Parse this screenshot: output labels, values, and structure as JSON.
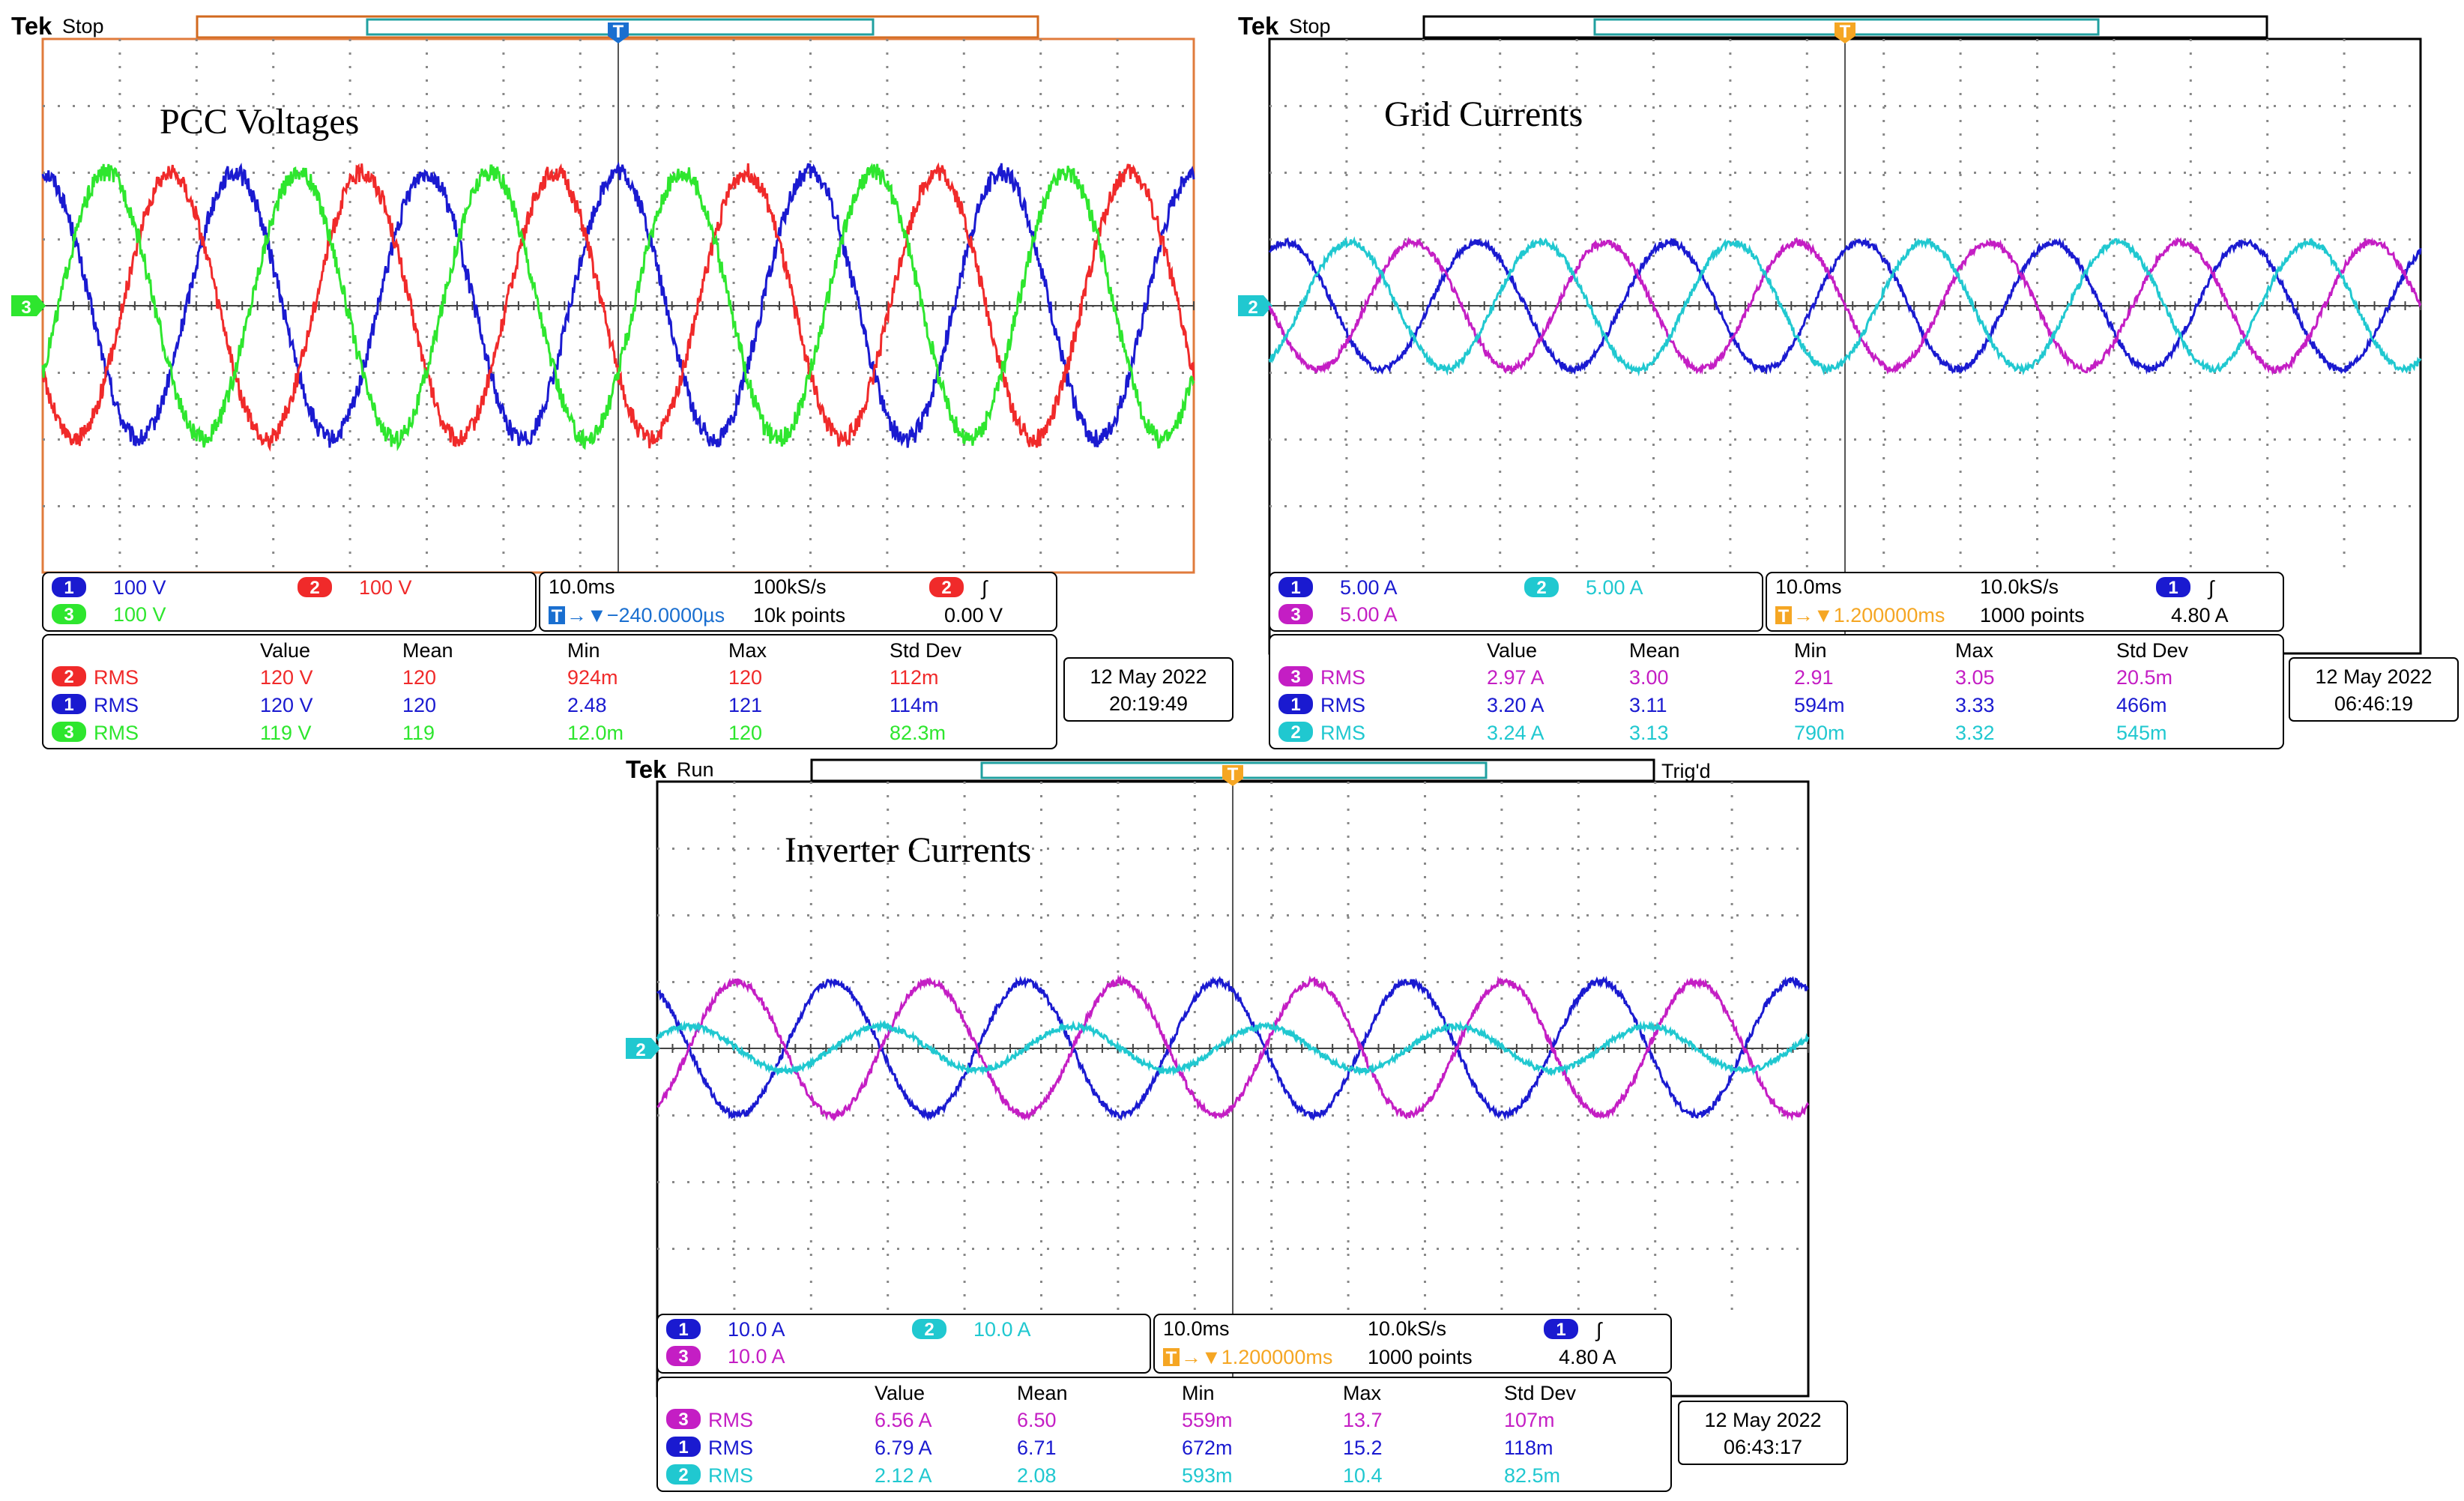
{
  "colors": {
    "ch1": "#1a1ad0",
    "ch2": "#f02a2a",
    "ch3": "#2ee62e",
    "magenta": "#c41ec4",
    "cyan": "#20c8d0",
    "trigger": "#f5a623"
  },
  "scopes": [
    {
      "brand": "Tek",
      "state": "Stop",
      "trig_status": "",
      "title": "PCC Voltages",
      "ground_marker": "3",
      "trace_colors": [
        "#1a1ad0",
        "#f02a2a",
        "#2ee62e"
      ],
      "channels": [
        {
          "num": "1",
          "scale": "100 V",
          "color": "#1a1ad0"
        },
        {
          "num": "2",
          "scale": "100 V",
          "color": "#f02a2a"
        },
        {
          "num": "3",
          "scale": "100 V",
          "color": "#2ee62e"
        }
      ],
      "timebase": "10.0ms",
      "sample_rate": "100kS/s",
      "delay": "−240.0000µs",
      "points": "10k points",
      "trig_channel": "2",
      "trig_level": "0.00 V",
      "meas_headers": [
        "Value",
        "Mean",
        "Min",
        "Max",
        "Std Dev"
      ],
      "meas": [
        {
          "ch": "2",
          "type": "RMS",
          "color": "#f02a2a",
          "value": "120 V",
          "mean": "120",
          "min": "924m",
          "max": "120",
          "std": "112m"
        },
        {
          "ch": "1",
          "type": "RMS",
          "color": "#1a1ad0",
          "value": "120 V",
          "mean": "120",
          "min": "2.48",
          "max": "121",
          "std": "114m"
        },
        {
          "ch": "3",
          "type": "RMS",
          "color": "#2ee62e",
          "value": "119 V",
          "mean": "119",
          "min": "12.0m",
          "max": "120",
          "std": "82.3m"
        }
      ],
      "date": "12 May 2022",
      "time": "20:19:49"
    },
    {
      "brand": "Tek",
      "state": "Stop",
      "trig_status": "",
      "title": "Grid Currents",
      "ground_marker": "2",
      "trace_colors": [
        "#1a1ad0",
        "#c41ec4",
        "#20c8d0"
      ],
      "channels": [
        {
          "num": "1",
          "scale": "5.00 A",
          "color": "#1a1ad0"
        },
        {
          "num": "2",
          "scale": "5.00 A",
          "color": "#20c8d0"
        },
        {
          "num": "3",
          "scale": "5.00 A",
          "color": "#c41ec4"
        }
      ],
      "timebase": "10.0ms",
      "sample_rate": "10.0kS/s",
      "delay": "1.200000ms",
      "points": "1000 points",
      "trig_channel": "1",
      "trig_level": "4.80 A",
      "meas_headers": [
        "Value",
        "Mean",
        "Min",
        "Max",
        "Std Dev"
      ],
      "meas": [
        {
          "ch": "3",
          "type": "RMS",
          "color": "#c41ec4",
          "value": "2.97 A",
          "mean": "3.00",
          "min": "2.91",
          "max": "3.05",
          "std": "20.5m"
        },
        {
          "ch": "1",
          "type": "RMS",
          "color": "#1a1ad0",
          "value": "3.20 A",
          "mean": "3.11",
          "min": "594m",
          "max": "3.33",
          "std": "466m"
        },
        {
          "ch": "2",
          "type": "RMS",
          "color": "#20c8d0",
          "value": "3.24 A",
          "mean": "3.13",
          "min": "790m",
          "max": "3.32",
          "std": "545m"
        }
      ],
      "date": "12 May 2022",
      "time": "06:46:19"
    },
    {
      "brand": "Tek",
      "state": "Run",
      "trig_status": "Trig'd",
      "title": "Inverter Currents",
      "ground_marker": "2",
      "trace_colors": [
        "#1a1ad0",
        "#c41ec4",
        "#20c8d0"
      ],
      "channels": [
        {
          "num": "1",
          "scale": "10.0 A",
          "color": "#1a1ad0"
        },
        {
          "num": "2",
          "scale": "10.0 A",
          "color": "#20c8d0"
        },
        {
          "num": "3",
          "scale": "10.0 A",
          "color": "#c41ec4"
        }
      ],
      "timebase": "10.0ms",
      "sample_rate": "10.0kS/s",
      "delay": "1.200000ms",
      "points": "1000 points",
      "trig_channel": "1",
      "trig_level": "4.80 A",
      "meas_headers": [
        "Value",
        "Mean",
        "Min",
        "Max",
        "Std Dev"
      ],
      "meas": [
        {
          "ch": "3",
          "type": "RMS",
          "color": "#c41ec4",
          "value": "6.56 A",
          "mean": "6.50",
          "min": "559m",
          "max": "13.7",
          "std": "107m"
        },
        {
          "ch": "1",
          "type": "RMS",
          "color": "#1a1ad0",
          "value": "6.79 A",
          "mean": "6.71",
          "min": "672m",
          "max": "15.2",
          "std": "118m"
        },
        {
          "ch": "2",
          "type": "RMS",
          "color": "#20c8d0",
          "value": "2.12 A",
          "mean": "2.08",
          "min": "593m",
          "max": "10.4",
          "std": "82.5m"
        }
      ],
      "date": "12 May 2022",
      "time": "06:43:17"
    }
  ],
  "chart_data": [
    {
      "type": "line",
      "title": "PCC Voltages",
      "x_unit": "ms",
      "x": [
        0,
        100
      ],
      "series": [
        {
          "channel": "1",
          "amplitude": 2.0,
          "phase_deg": 90,
          "freq_hz": 60,
          "noise": 0.14
        },
        {
          "channel": "2",
          "amplitude": 2.0,
          "phase_deg": 210,
          "freq_hz": 60,
          "noise": 0.14
        },
        {
          "channel": "3",
          "amplitude": 2.0,
          "phase_deg": 330,
          "freq_hz": 60,
          "noise": 0.14
        }
      ]
    },
    {
      "type": "line",
      "title": "Grid Currents",
      "x_unit": "ms",
      "x": [
        0,
        100
      ],
      "series": [
        {
          "channel": "1",
          "amplitude": 0.95,
          "phase_deg": 60,
          "freq_hz": 60,
          "noise": 0.05
        },
        {
          "channel": "3",
          "amplitude": 0.95,
          "phase_deg": 180,
          "freq_hz": 60,
          "noise": 0.05
        },
        {
          "channel": "2",
          "amplitude": 0.95,
          "phase_deg": 300,
          "freq_hz": 60,
          "noise": 0.05
        }
      ]
    },
    {
      "type": "line",
      "title": "Inverter Currents",
      "x_unit": "ms",
      "x": [
        0,
        100
      ],
      "series": [
        {
          "channel": "1",
          "amplitude": 1.0,
          "phase_deg": 120,
          "freq_hz": 60,
          "noise": 0.05
        },
        {
          "channel": "3",
          "amplitude": 1.0,
          "phase_deg": 300,
          "freq_hz": 60,
          "noise": 0.05
        },
        {
          "channel": "2",
          "amplitude": 0.33,
          "phase_deg": 30,
          "freq_hz": 60,
          "noise": 0.04
        }
      ]
    }
  ]
}
